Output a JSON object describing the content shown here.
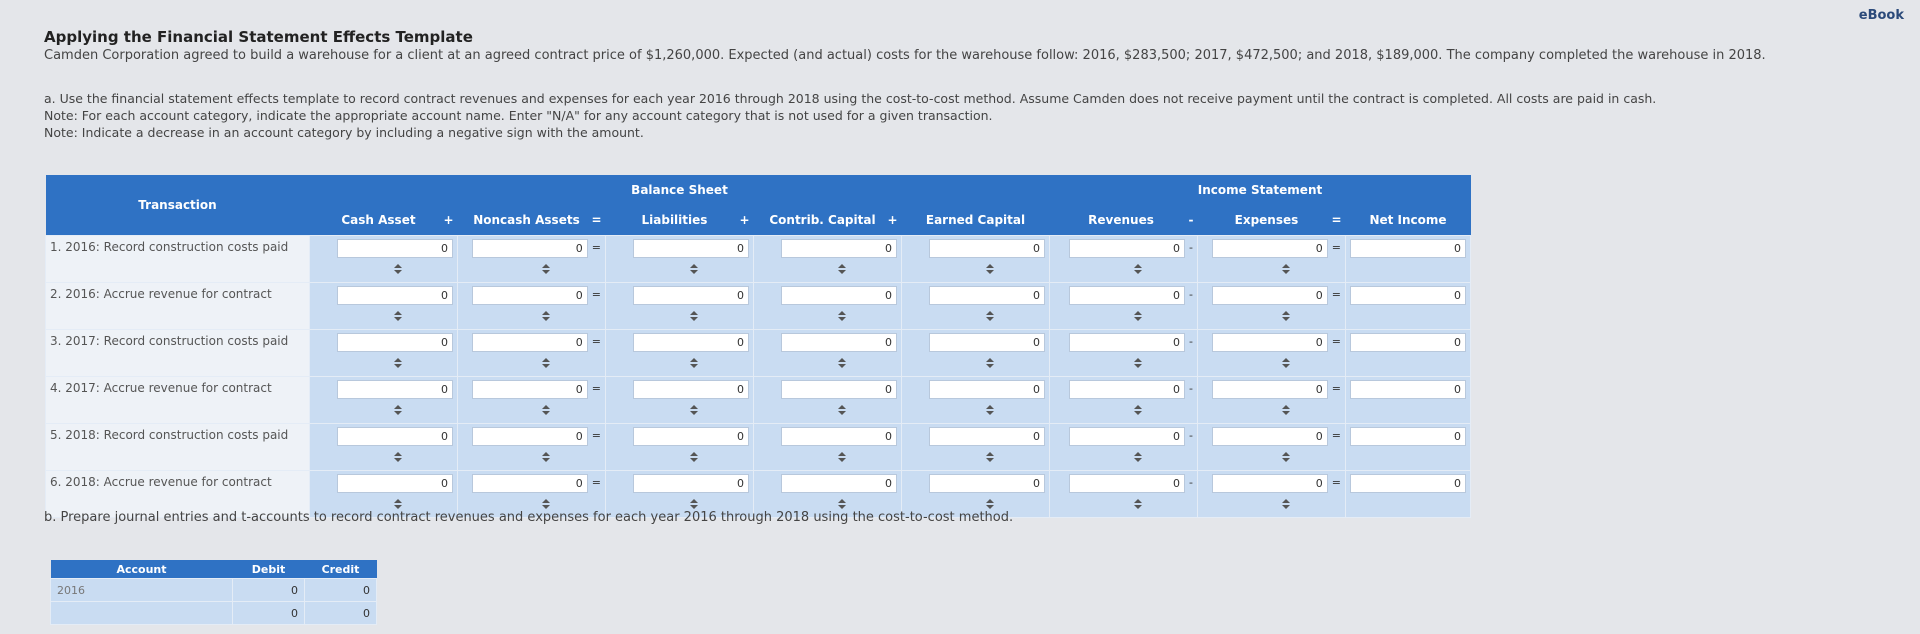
{
  "ebook": "eBook",
  "header": {
    "title": "Applying the Financial Statement Effects Template",
    "description": "Camden Corporation agreed to build a warehouse for a client at an agreed contract price of $1,260,000. Expected (and actual) costs for the warehouse follow: 2016, $283,500; 2017, $472,500; and 2018, $189,000. The company completed the warehouse in 2018."
  },
  "instructions": {
    "part_a": "a. Use the financial statement effects template to record contract revenues and expenses for each year 2016 through 2018 using the cost-to-cost method. Assume Camden does not receive payment until the contract is completed. All costs are paid in cash.",
    "note_1": "Note: For each account category, indicate the appropriate account name. Enter \"N/A\" for any account category that is not used for a given transaction.",
    "note_2": "Note: Indicate a decrease in an account category by including a negative sign with the amount."
  },
  "template": {
    "group_headers": {
      "balance_sheet": "Balance Sheet",
      "income_statement": "Income Statement"
    },
    "columns": [
      "Transaction",
      "Cash Asset",
      "Noncash Assets",
      "Liabilities",
      "Contrib. Capital",
      "Earned Capital",
      "Revenues",
      "Expenses",
      "Net Income"
    ],
    "operators": [
      "+",
      "=",
      "+",
      "+",
      "-",
      "="
    ],
    "rows": [
      {
        "transaction": "1. 2016: Record construction costs paid",
        "values": [
          0,
          0,
          0,
          0,
          0,
          0,
          0,
          0
        ]
      },
      {
        "transaction": "2. 2016: Accrue revenue for contract",
        "values": [
          0,
          0,
          0,
          0,
          0,
          0,
          0,
          0
        ]
      },
      {
        "transaction": "3. 2017: Record construction costs paid",
        "values": [
          0,
          0,
          0,
          0,
          0,
          0,
          0,
          0
        ]
      },
      {
        "transaction": "4. 2017: Accrue revenue for contract",
        "values": [
          0,
          0,
          0,
          0,
          0,
          0,
          0,
          0
        ]
      },
      {
        "transaction": "5. 2018: Record construction costs paid",
        "values": [
          0,
          0,
          0,
          0,
          0,
          0,
          0,
          0
        ]
      },
      {
        "transaction": "6. 2018: Accrue revenue for contract",
        "values": [
          0,
          0,
          0,
          0,
          0,
          0,
          0,
          0
        ]
      }
    ]
  },
  "part_b": "b. Prepare journal entries and t-accounts to record contract revenues and expenses for each year 2016 through 2018 using the cost-to-cost method.",
  "journal": {
    "columns": [
      "Account",
      "Debit",
      "Credit"
    ],
    "rows": [
      {
        "account": "2016",
        "debit": 0,
        "credit": 0
      },
      {
        "debit": 0,
        "credit": 0
      }
    ]
  }
}
